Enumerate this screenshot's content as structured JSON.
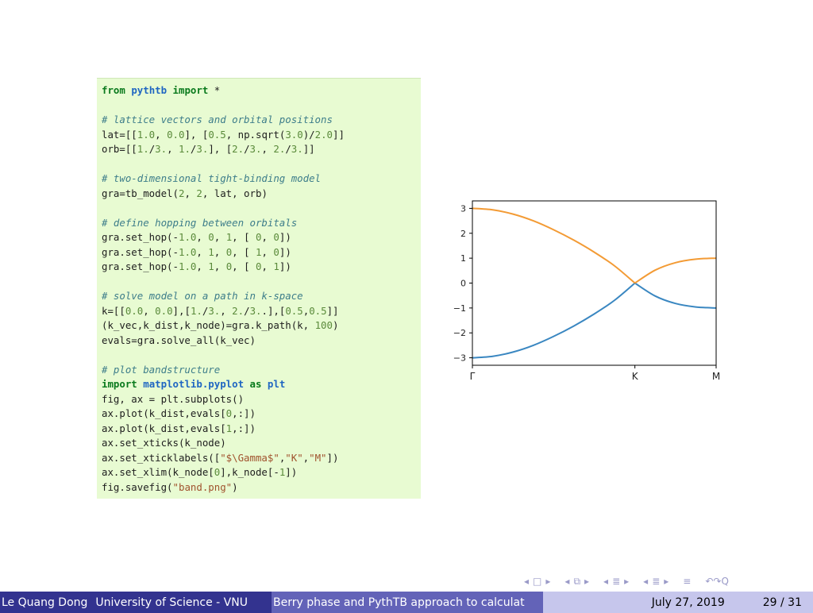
{
  "code": {
    "lines": [
      [
        {
          "t": "from",
          "c": "kw"
        },
        {
          "t": " "
        },
        {
          "t": "pythtb",
          "c": "mod"
        },
        {
          "t": " "
        },
        {
          "t": "import",
          "c": "kw"
        },
        {
          "t": " *"
        }
      ],
      [],
      [
        {
          "t": "# lattice vectors and orbital positions",
          "c": "comment"
        }
      ],
      [
        {
          "t": "lat=[["
        },
        {
          "t": "1.0",
          "c": "num"
        },
        {
          "t": ", "
        },
        {
          "t": "0.0",
          "c": "num"
        },
        {
          "t": "], ["
        },
        {
          "t": "0.5",
          "c": "num"
        },
        {
          "t": ", np.sqrt("
        },
        {
          "t": "3.0",
          "c": "num"
        },
        {
          "t": ")/"
        },
        {
          "t": "2.0",
          "c": "num"
        },
        {
          "t": "]]"
        }
      ],
      [
        {
          "t": "orb=[["
        },
        {
          "t": "1.",
          "c": "num"
        },
        {
          "t": "/"
        },
        {
          "t": "3.",
          "c": "num"
        },
        {
          "t": ", "
        },
        {
          "t": "1.",
          "c": "num"
        },
        {
          "t": "/"
        },
        {
          "t": "3.",
          "c": "num"
        },
        {
          "t": "], ["
        },
        {
          "t": "2.",
          "c": "num"
        },
        {
          "t": "/"
        },
        {
          "t": "3.",
          "c": "num"
        },
        {
          "t": ", "
        },
        {
          "t": "2.",
          "c": "num"
        },
        {
          "t": "/"
        },
        {
          "t": "3.",
          "c": "num"
        },
        {
          "t": "]]"
        }
      ],
      [],
      [
        {
          "t": "# two-dimensional tight-binding model",
          "c": "comment"
        }
      ],
      [
        {
          "t": "gra=tb_model("
        },
        {
          "t": "2",
          "c": "num"
        },
        {
          "t": ", "
        },
        {
          "t": "2",
          "c": "num"
        },
        {
          "t": ", lat, orb)"
        }
      ],
      [],
      [
        {
          "t": "# define hopping between orbitals",
          "c": "comment"
        }
      ],
      [
        {
          "t": "gra.set_hop(-"
        },
        {
          "t": "1.0",
          "c": "num"
        },
        {
          "t": ", "
        },
        {
          "t": "0",
          "c": "num"
        },
        {
          "t": ", "
        },
        {
          "t": "1",
          "c": "num"
        },
        {
          "t": ", [ "
        },
        {
          "t": "0",
          "c": "num"
        },
        {
          "t": ", "
        },
        {
          "t": "0",
          "c": "num"
        },
        {
          "t": "])"
        }
      ],
      [
        {
          "t": "gra.set_hop(-"
        },
        {
          "t": "1.0",
          "c": "num"
        },
        {
          "t": ", "
        },
        {
          "t": "1",
          "c": "num"
        },
        {
          "t": ", "
        },
        {
          "t": "0",
          "c": "num"
        },
        {
          "t": ", [ "
        },
        {
          "t": "1",
          "c": "num"
        },
        {
          "t": ", "
        },
        {
          "t": "0",
          "c": "num"
        },
        {
          "t": "])"
        }
      ],
      [
        {
          "t": "gra.set_hop(-"
        },
        {
          "t": "1.0",
          "c": "num"
        },
        {
          "t": ", "
        },
        {
          "t": "1",
          "c": "num"
        },
        {
          "t": ", "
        },
        {
          "t": "0",
          "c": "num"
        },
        {
          "t": ", [ "
        },
        {
          "t": "0",
          "c": "num"
        },
        {
          "t": ", "
        },
        {
          "t": "1",
          "c": "num"
        },
        {
          "t": "])"
        }
      ],
      [],
      [
        {
          "t": "# solve model on a path in k-space",
          "c": "comment"
        }
      ],
      [
        {
          "t": "k=[["
        },
        {
          "t": "0.0",
          "c": "num"
        },
        {
          "t": ", "
        },
        {
          "t": "0.0",
          "c": "num"
        },
        {
          "t": "],["
        },
        {
          "t": "1.",
          "c": "num"
        },
        {
          "t": "/"
        },
        {
          "t": "3.",
          "c": "num"
        },
        {
          "t": ", "
        },
        {
          "t": "2.",
          "c": "num"
        },
        {
          "t": "/"
        },
        {
          "t": "3.",
          "c": "num"
        },
        {
          "t": ".],["
        },
        {
          "t": "0.5",
          "c": "num"
        },
        {
          "t": ","
        },
        {
          "t": "0.5",
          "c": "num"
        },
        {
          "t": "]]"
        }
      ],
      [
        {
          "t": "(k_vec,k_dist,k_node)=gra.k_path(k, "
        },
        {
          "t": "100",
          "c": "num"
        },
        {
          "t": ")"
        }
      ],
      [
        {
          "t": "evals=gra.solve_all(k_vec)"
        }
      ],
      [],
      [
        {
          "t": "# plot bandstructure",
          "c": "comment"
        }
      ],
      [
        {
          "t": "import",
          "c": "kw"
        },
        {
          "t": " "
        },
        {
          "t": "matplotlib.pyplot",
          "c": "mod"
        },
        {
          "t": " "
        },
        {
          "t": "as",
          "c": "kw"
        },
        {
          "t": " "
        },
        {
          "t": "plt",
          "c": "mod"
        }
      ],
      [
        {
          "t": "fig, ax = plt.subplots()"
        }
      ],
      [
        {
          "t": "ax.plot(k_dist,evals["
        },
        {
          "t": "0",
          "c": "num"
        },
        {
          "t": ",:])"
        }
      ],
      [
        {
          "t": "ax.plot(k_dist,evals["
        },
        {
          "t": "1",
          "c": "num"
        },
        {
          "t": ",:])"
        }
      ],
      [
        {
          "t": "ax.set_xticks(k_node)"
        }
      ],
      [
        {
          "t": "ax.set_xticklabels(["
        },
        {
          "t": "\"$\\Gamma$\"",
          "c": "str"
        },
        {
          "t": ","
        },
        {
          "t": "\"K\"",
          "c": "str"
        },
        {
          "t": ","
        },
        {
          "t": "\"M\"",
          "c": "str"
        },
        {
          "t": "])"
        }
      ],
      [
        {
          "t": "ax.set_xlim(k_node["
        },
        {
          "t": "0",
          "c": "num"
        },
        {
          "t": "],k_node[-"
        },
        {
          "t": "1",
          "c": "num"
        },
        {
          "t": "])"
        }
      ],
      [
        {
          "t": "fig.savefig("
        },
        {
          "t": "\"band.png\"",
          "c": "str"
        },
        {
          "t": ")"
        }
      ]
    ]
  },
  "chart_data": {
    "type": "line",
    "xlim": [
      0,
      1
    ],
    "ylim": [
      -3.3,
      3.3
    ],
    "xticks": [
      {
        "x": 0,
        "label": "Γ"
      },
      {
        "x": 0.6667,
        "label": "K"
      },
      {
        "x": 1,
        "label": "M"
      }
    ],
    "yticks": [
      -3,
      -2,
      -1,
      0,
      1,
      2,
      3
    ],
    "ytick_labels": [
      "−3",
      "−2",
      "−1",
      "0",
      "1",
      "2",
      "3"
    ],
    "grid": false,
    "series": [
      {
        "color": "#3a87c1",
        "x": [
          0,
          0.0833,
          0.1667,
          0.25,
          0.3333,
          0.4167,
          0.5,
          0.5833,
          0.6667,
          0.75,
          0.8333,
          0.9167,
          1
        ],
        "values": [
          -3,
          -2.94,
          -2.77,
          -2.5,
          -2.14,
          -1.72,
          -1.24,
          -0.69,
          0,
          -0.52,
          -0.82,
          -0.96,
          -1
        ]
      },
      {
        "color": "#f39b35",
        "x": [
          0,
          0.0833,
          0.1667,
          0.25,
          0.3333,
          0.4167,
          0.5,
          0.5833,
          0.6667,
          0.75,
          0.8333,
          0.9167,
          1
        ],
        "values": [
          3,
          2.94,
          2.77,
          2.5,
          2.14,
          1.72,
          1.24,
          0.69,
          0,
          0.52,
          0.82,
          0.96,
          1
        ]
      }
    ]
  },
  "nav_symbols": {
    "prev_frame": "◂",
    "frame": "□",
    "next_frame": "▸",
    "prev_sub": "◂",
    "sub": "⧉",
    "next_sub": "▸",
    "prev_sec": "◂",
    "sec": "≣",
    "next_sec": "▸",
    "prev_subsec": "◂",
    "subsec": "≣",
    "next_subsec": "▸",
    "align": "≡",
    "search": "↶↷Q"
  },
  "footer": {
    "author": "Le Quang Dong",
    "institute": "University of Science - VNU",
    "short_title": "Berry phase and PythTB approach to calculat",
    "date": "July 27, 2019",
    "page": "29 / 31"
  }
}
